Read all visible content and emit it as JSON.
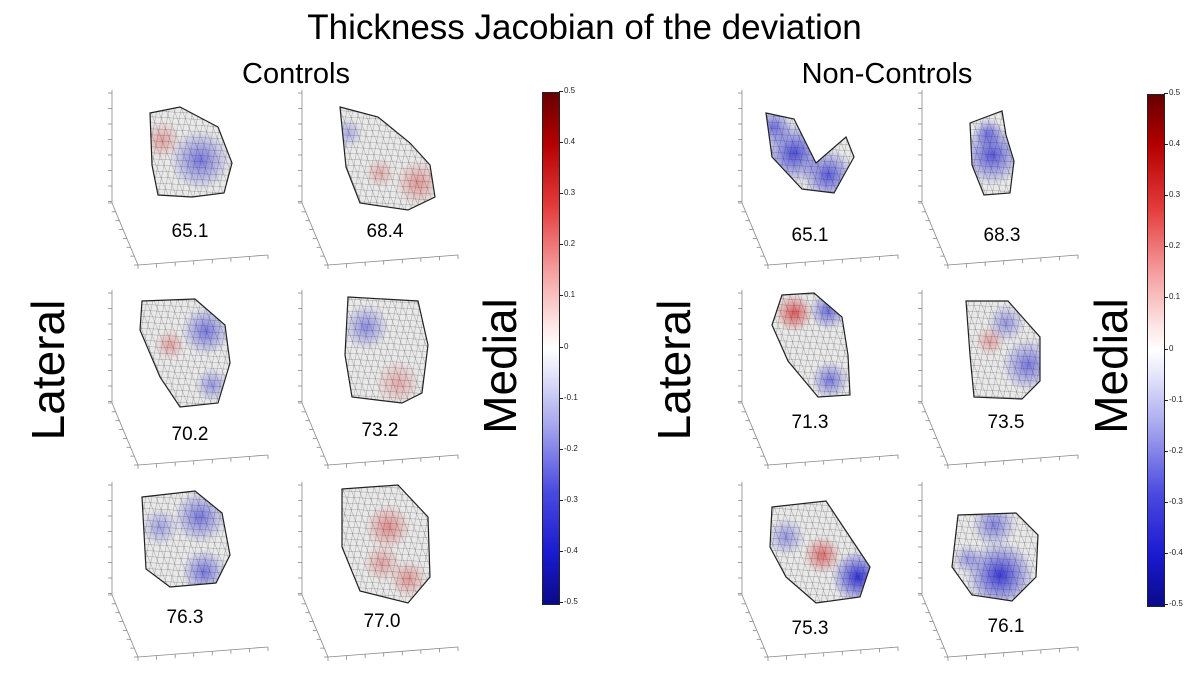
{
  "title": "Thickness Jacobian of the deviation",
  "groups": [
    {
      "name": "Controls",
      "left_label": "Lateral",
      "right_label": "Medial",
      "ages": [
        "65.1",
        "68.4",
        "70.2",
        "73.2",
        "76.3",
        "77.0"
      ]
    },
    {
      "name": "Non-Controls",
      "left_label": "Lateral",
      "right_label": "Medial",
      "ages": [
        "65.1",
        "68.3",
        "71.3",
        "73.5",
        "75.3",
        "76.1"
      ]
    }
  ],
  "colorbar": {
    "ticks": [
      "0.5",
      "0.4",
      "0.3",
      "0.2",
      "0.1",
      "0",
      "-0.1",
      "-0.2",
      "-0.3",
      "-0.4",
      "-0.5"
    ],
    "colors": {
      "high": "#670000",
      "mid": "#ffffff",
      "low": "#0a0a8a"
    }
  }
}
